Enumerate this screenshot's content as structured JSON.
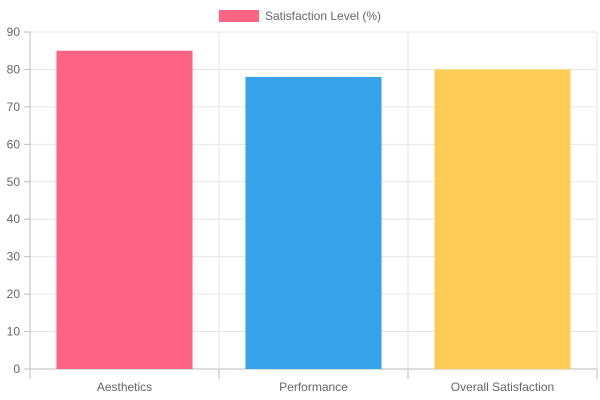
{
  "chart_data": {
    "type": "bar",
    "categories": [
      "Aesthetics",
      "Performance",
      "Overall Satisfaction"
    ],
    "series": [
      {
        "name": "Satisfaction Level (%)",
        "values": [
          85,
          78,
          80
        ],
        "colors": [
          "#ff6384",
          "#36a2eb",
          "#ffcd56"
        ]
      }
    ],
    "ylim": [
      0,
      90
    ],
    "y_ticks": [
      0,
      10,
      20,
      30,
      40,
      50,
      60,
      70,
      80,
      90
    ],
    "grid": true,
    "legend": {
      "position": "top",
      "label": "Satisfaction Level (%)",
      "color": "#ff6384"
    }
  }
}
